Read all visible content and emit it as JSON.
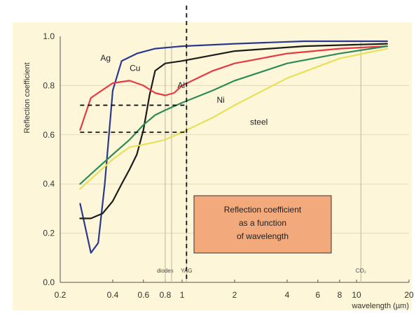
{
  "chart_data": {
    "type": "line",
    "xscale": "log",
    "xlim": [
      0.2,
      20
    ],
    "ylim": [
      0.0,
      1.0
    ],
    "grid": true,
    "xlabel": "wavelength (µm)",
    "ylabel": "Reflection coefficient",
    "x_ticks": [
      {
        "value": 0.2,
        "label": "0.2"
      },
      {
        "value": 0.4,
        "label": "0.4"
      },
      {
        "value": 0.6,
        "label": "0.6"
      },
      {
        "value": 0.8,
        "label": "0.8"
      },
      {
        "value": 1,
        "label": "1"
      },
      {
        "value": 2,
        "label": "2"
      },
      {
        "value": 4,
        "label": "4"
      },
      {
        "value": 6,
        "label": "6"
      },
      {
        "value": 8,
        "label": "8"
      },
      {
        "value": 10,
        "label": "10"
      },
      {
        "value": 20,
        "label": "20"
      }
    ],
    "y_ticks": [
      {
        "value": 0.0,
        "label": "0.0"
      },
      {
        "value": 0.2,
        "label": "0.2"
      },
      {
        "value": 0.4,
        "label": "0.4"
      },
      {
        "value": 0.6,
        "label": "0.6"
      },
      {
        "value": 0.8,
        "label": "0.8"
      },
      {
        "value": 1.0,
        "label": "1.0"
      }
    ],
    "series": [
      {
        "name": "Ag",
        "color": "#2b3a8f",
        "x": [
          0.26,
          0.3,
          0.33,
          0.36,
          0.4,
          0.45,
          0.55,
          0.7,
          1.0,
          2.0,
          5.0,
          15.0
        ],
        "y": [
          0.32,
          0.12,
          0.16,
          0.4,
          0.78,
          0.9,
          0.93,
          0.95,
          0.96,
          0.97,
          0.98,
          0.98
        ]
      },
      {
        "name": "Cu",
        "color": "#1c1c1c",
        "x": [
          0.26,
          0.3,
          0.35,
          0.4,
          0.45,
          0.5,
          0.55,
          0.6,
          0.65,
          0.7,
          0.8,
          1.0,
          2.0,
          5.0,
          15.0
        ],
        "y": [
          0.26,
          0.26,
          0.28,
          0.33,
          0.4,
          0.46,
          0.52,
          0.62,
          0.76,
          0.86,
          0.89,
          0.9,
          0.94,
          0.96,
          0.97
        ]
      },
      {
        "name": "Al",
        "color": "#e63946",
        "x": [
          0.26,
          0.3,
          0.4,
          0.5,
          0.6,
          0.7,
          0.8,
          0.9,
          1.0,
          1.5,
          2.0,
          4.0,
          8.0,
          15.0
        ],
        "y": [
          0.62,
          0.75,
          0.81,
          0.82,
          0.8,
          0.77,
          0.76,
          0.77,
          0.8,
          0.86,
          0.89,
          0.93,
          0.95,
          0.96
        ]
      },
      {
        "name": "Ni",
        "color": "#2e8b57",
        "x": [
          0.26,
          0.3,
          0.4,
          0.5,
          0.6,
          0.7,
          0.8,
          1.0,
          1.5,
          2.0,
          4.0,
          8.0,
          15.0
        ],
        "y": [
          0.4,
          0.44,
          0.52,
          0.58,
          0.64,
          0.68,
          0.7,
          0.73,
          0.78,
          0.82,
          0.89,
          0.93,
          0.96
        ]
      },
      {
        "name": "steel",
        "color": "#e8e05a",
        "x": [
          0.26,
          0.3,
          0.4,
          0.5,
          0.6,
          0.7,
          0.8,
          1.0,
          1.5,
          2.0,
          4.0,
          8.0,
          15.0
        ],
        "y": [
          0.38,
          0.42,
          0.5,
          0.55,
          0.56,
          0.57,
          0.58,
          0.61,
          0.67,
          0.72,
          0.83,
          0.91,
          0.95
        ]
      }
    ],
    "curve_labels": [
      {
        "text": "Ag",
        "x": 0.34,
        "y": 0.9
      },
      {
        "text": "Cu",
        "x": 0.5,
        "y": 0.86
      },
      {
        "text": "Al",
        "x": 0.94,
        "y": 0.79
      },
      {
        "text": "Ni",
        "x": 1.58,
        "y": 0.73
      },
      {
        "text": "steel",
        "x": 2.45,
        "y": 0.64
      }
    ],
    "vertical_markers": [
      {
        "x": 0.8,
        "label": "diodes"
      },
      {
        "x": 0.87,
        "label": ""
      },
      {
        "x": 1.06,
        "label": "YAG"
      },
      {
        "x": 10.6,
        "label": "CO₂"
      }
    ],
    "guide_lines": {
      "vertical_x": 1.06,
      "horizontal": [
        {
          "y": 0.72,
          "x_from": 0.26,
          "x_to": 1.06
        },
        {
          "y": 0.61,
          "x_from": 0.26,
          "x_to": 1.06
        }
      ]
    },
    "annotation_box": {
      "lines": [
        "Reflection coefficient",
        "as a function",
        "of wavelength"
      ],
      "fill": "#f2a97c"
    },
    "background_color": "#fdf6d8"
  }
}
